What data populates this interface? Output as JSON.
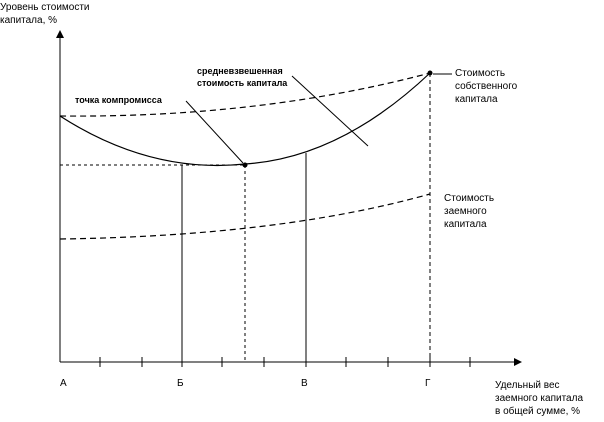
{
  "axes": {
    "y_title_line1": "Уровень стоимости",
    "y_title_line2": "капитала, %",
    "x_title_line1": "Удельный вес",
    "x_title_line2": "заемного капитала",
    "x_title_line3": "в общей сумме, %"
  },
  "x_points": {
    "a": "А",
    "b": "Б",
    "v": "В",
    "g": "Г"
  },
  "annotations": {
    "wacc_line1": "средневзвешенная",
    "wacc_line2": "стоимость капитала",
    "compromise": "точка компромисса"
  },
  "legend": {
    "equity_line1": "Стоимость",
    "equity_line2": "собственного",
    "equity_line3": "капитала",
    "debt_line1": "Стоимость",
    "debt_line2": "заемного",
    "debt_line3": "капитала"
  },
  "colors": {
    "ink": "#000000",
    "background": "#ffffff"
  }
}
